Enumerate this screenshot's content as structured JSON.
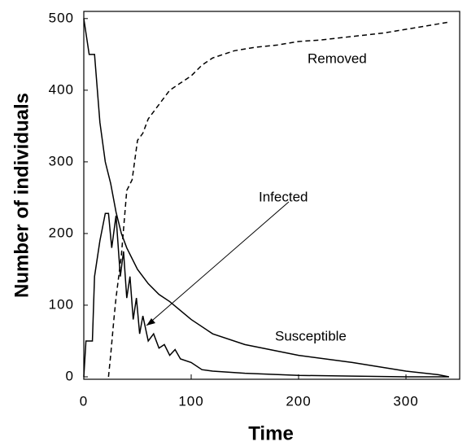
{
  "chart_data": {
    "type": "line",
    "xlabel": "Time",
    "ylabel": "Number of individuals",
    "xlim": [
      0,
      350
    ],
    "ylim": [
      0,
      510
    ],
    "xticks": [
      0,
      100,
      200,
      300
    ],
    "yticks": [
      0,
      100,
      200,
      300,
      400,
      500
    ],
    "series": [
      {
        "name": "Susceptible",
        "color": "#000000",
        "dashed": false,
        "x": [
          0,
          5,
          10,
          15,
          20,
          25,
          30,
          35,
          40,
          50,
          60,
          70,
          80,
          100,
          120,
          150,
          200,
          250,
          300,
          330,
          340
        ],
        "values": [
          500,
          450,
          450,
          355,
          300,
          270,
          230,
          200,
          180,
          150,
          130,
          115,
          105,
          80,
          60,
          45,
          30,
          20,
          8,
          3,
          0
        ]
      },
      {
        "name": "Infected",
        "color": "#000000",
        "dashed": false,
        "x": [
          0,
          2,
          8,
          10,
          15,
          20,
          23,
          26,
          30,
          34,
          37,
          40,
          43,
          46,
          49,
          52,
          55,
          60,
          65,
          70,
          75,
          80,
          85,
          90,
          100,
          110,
          120,
          150,
          200,
          250,
          300,
          340
        ],
        "values": [
          0,
          50,
          50,
          140,
          190,
          228,
          228,
          180,
          225,
          140,
          175,
          110,
          140,
          80,
          110,
          60,
          85,
          50,
          60,
          40,
          45,
          30,
          38,
          25,
          20,
          10,
          8,
          5,
          2,
          1,
          0,
          0
        ]
      },
      {
        "name": "Removed",
        "color": "#000000",
        "dashed": true,
        "x": [
          23,
          25,
          28,
          30,
          35,
          40,
          45,
          50,
          55,
          60,
          70,
          80,
          90,
          100,
          110,
          120,
          130,
          140,
          160,
          180,
          200,
          220,
          250,
          280,
          300,
          320,
          340
        ],
        "values": [
          0,
          30,
          80,
          110,
          170,
          260,
          275,
          330,
          340,
          360,
          380,
          400,
          410,
          420,
          435,
          445,
          450,
          455,
          460,
          463,
          468,
          470,
          475,
          480,
          485,
          490,
          495
        ]
      }
    ]
  }
}
